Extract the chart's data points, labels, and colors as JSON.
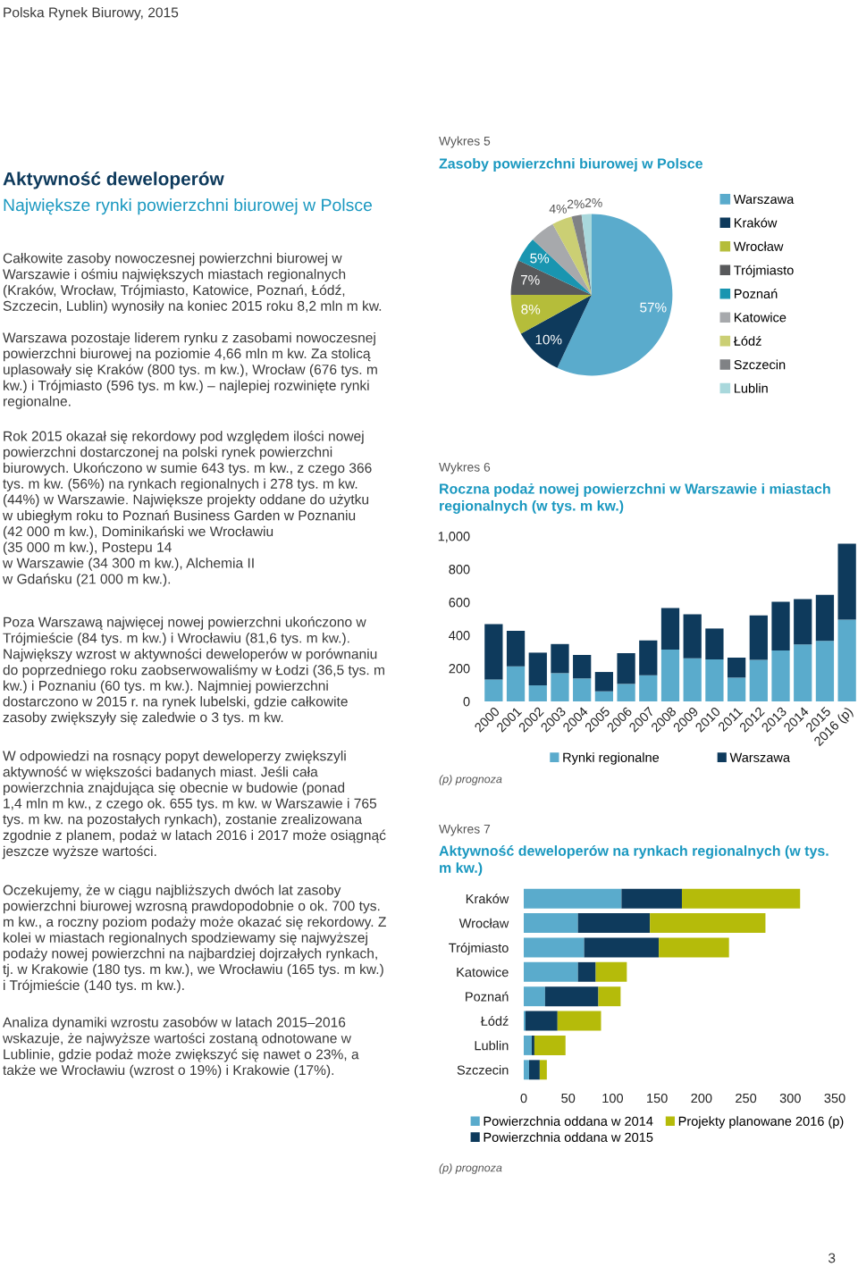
{
  "chart_data": [
    {
      "type": "other",
      "title": "Aktywność deweloperów",
      "subtitle": "Największe rynki powierzchni biurowej w Polsce",
      "annotations": [
        "Polska Rynek Biurowy, 2015",
        "Całkowite zasoby nowoczesnej powierzchni biurowej w\nWarszawie i ośmiu największych miastach regionalnych\n(Kraków, Wrocław, Trójmiasto, Katowice, Poznań, Łódź,\nSzczecin, Lublin) wynosiły na koniec 2015 roku 8,2 mln m kw.",
        "Warszawa pozostaje liderem rynku z zasobami nowoczesnej\npowierzchni biurowej na poziomie 4,66 mln m kw. Za stolicą\nuplasowały się Kraków (800 tys. m kw.), Wrocław (676 tys. m\nkw.) i Trójmiasto (596 tys. m kw.) – najlepiej rozwinięte rynki\nregionalne.",
        "Rok 2015 okazał się rekordowy pod względem ilości nowej\npowierzchni dostarczonej na polski rynek powierzchni\nbiurowych. Ukończono w sumie 643 tys. m kw., z czego 366\ntys. m kw. (56%) na rynkach regionalnych i 278 tys. m kw.\n(44%) w Warszawie. Największe projekty oddane do użytku\nw ubiegłym roku to Poznań Business Garden w Poznaniu\n(42 000 m kw.), Dominikański we Wrocławiu\n(35 000 m kw.), Postepu 14\nw Warszawie (34 300 m kw.), Alchemia II\nw Gdańsku (21 000 m kw.).",
        "Poza Warszawą najwięcej nowej powierzchni ukończono w\nTrójmieście (84 tys. m kw.) i Wrocławiu (81,6 tys. m kw.).\nNajwiększy wzrost w aktywności deweloperów w porównaniu\ndo poprzedniego roku zaobserwowaliśmy w Łodzi (36,5 tys. m\nkw.) i Poznaniu (60 tys. m kw.). Najmniej powierzchni\ndostarczono w 2015 r. na rynek lubelski, gdzie całkowite\nzasoby zwiększyły się zaledwie o 3 tys. m kw.",
        "W odpowiedzi na rosnący popyt deweloperzy zwiększyli\naktywność w większości badanych miast. Jeśli cała\npowierzchnia znajdująca się obecnie w budowie (ponad\n1,4 mln m kw., z czego ok. 655 tys. m kw. w Warszawie i 765\ntys. m kw. na pozostałych rynkach), zostanie zrealizowana\nzgodnie z planem, podaż w latach 2016 i 2017 może osiągnąć\njeszcze wyższe wartości.",
        "Oczekujemy, że w ciągu najbliższych dwóch lat zasoby\npowierzchni biurowej wzrosną prawdopodobnie o ok. 700 tys.\nm kw., a roczny poziom podaży może okazać się rekordowy. Z\nkolei w miastach regionalnych spodziewamy się najwyższej\npodaży nowej powierzchni na najbardziej dojrzałych rynkach,\ntj. w Krakowie (180 tys. m kw.), we Wrocławiu (165 tys. m kw.)\ni Trójmieście (140 tys. m kw.).",
        "Analiza dynamiki wzrostu zasobów w latach 2015–2016\nwskazuje, że najwyższe wartości zostaną odnotowane w\nLublinie, gdzie podaż może zwiększyć się nawet o 23%, a\ntakże we Wrocławiu (wzrost o 19%) i Krakowie (17%).",
        "3"
      ]
    },
    {
      "type": "pie",
      "subtitle": "Wykres 5",
      "title": "Zasoby powierzchni biurowej w Polsce",
      "categories": [
        "Warszawa",
        "Kraków",
        "Wrocław",
        "Trójmiasto",
        "Poznań",
        "Katowice",
        "Łódź",
        "Szczecin",
        "Lublin"
      ],
      "values": [
        57,
        10,
        8,
        7,
        5,
        5,
        4,
        2,
        2
      ],
      "value_labels": [
        "57%",
        "10%",
        "8%",
        "7%",
        "5%",
        null,
        "4%",
        "2%",
        "2%"
      ],
      "colors": [
        "#5aabcc",
        "#0e3a5c",
        "#b5bd3a",
        "#58595b",
        "#1995b0",
        "#a7a9ac",
        "#cbcf74",
        "#808285",
        "#a9d8dc"
      ],
      "legend": "right"
    },
    {
      "type": "bar",
      "stacked": true,
      "subtitle": "Wykres 6",
      "title": "Roczna podaż nowej powierzchni w Warszawie i miastach\nregionalnych (w tys. m kw.)",
      "categories": [
        "2000",
        "2001",
        "2002",
        "2003",
        "2004",
        "2005",
        "2006",
        "2007",
        "2008",
        "2009",
        "2010",
        "2011",
        "2012",
        "2013",
        "2014",
        "2015",
        "2016 (p)"
      ],
      "series": [
        {
          "name": "Rynki regionalne",
          "color": "#5aabcc",
          "values": [
            133,
            212,
            97,
            171,
            139,
            61,
            106,
            158,
            313,
            261,
            254,
            144,
            252,
            308,
            344,
            366,
            495
          ]
        },
        {
          "name": "Warszawa",
          "color": "#0e3a5c",
          "values": [
            335,
            215,
            198,
            176,
            142,
            117,
            186,
            211,
            252,
            266,
            187,
            121,
            268,
            295,
            275,
            278,
            459
          ]
        }
      ],
      "ylim": [
        0,
        1000
      ],
      "yticks": [
        0,
        200,
        400,
        600,
        800,
        {
          "value": 1000,
          "label": "1,000"
        }
      ],
      "legend": "bottom",
      "annotations": [
        "(p) prognoza"
      ]
    },
    {
      "type": "bar",
      "stacked": true,
      "orientation": "horizontal",
      "subtitle": "Wykres 7",
      "title": "Aktywność deweloperów na rynkach regionalnych (w tys.\nm kw.)",
      "categories": [
        "Kraków",
        "Wrocław",
        "Trójmiasto",
        "Katowice",
        "Poznań",
        "Łódź",
        "Lublin",
        "Szczecin"
      ],
      "series": [
        {
          "name": "Powierzchnia oddana w 2014",
          "color": "#5aabcc",
          "values": [
            110,
            61,
            68,
            61,
            24,
            2,
            9,
            6
          ]
        },
        {
          "name": "Powierzchnia oddana w 2015",
          "color": "#0e3a5c",
          "values": [
            68,
            81,
            84,
            20,
            60,
            36,
            3,
            12
          ]
        },
        {
          "name": "Projekty planowane 2016 (p)",
          "color": "#b5bb0a",
          "values": [
            133,
            130,
            79,
            35,
            25,
            49,
            35,
            8
          ]
        }
      ],
      "xlim": [
        0,
        350
      ],
      "xticks": [
        0,
        50,
        100,
        150,
        200,
        250,
        300,
        350
      ],
      "legend": "bottom",
      "annotations": [
        "(p) prognoza"
      ]
    }
  ]
}
